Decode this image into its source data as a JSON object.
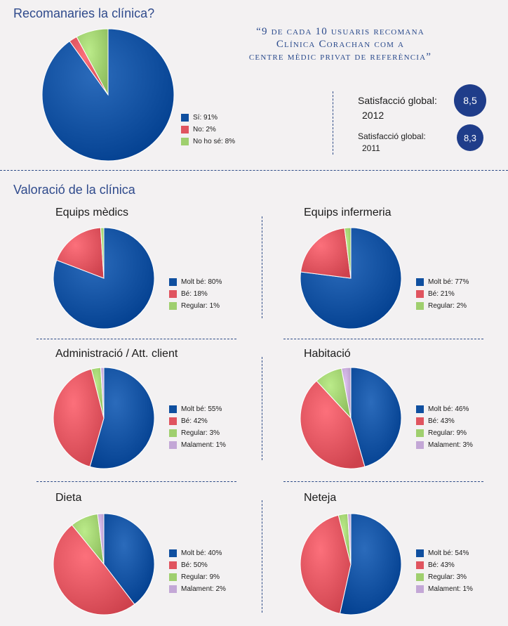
{
  "colors": {
    "molt_be": "#0f4f9f",
    "be": "#e0545f",
    "regular": "#9fcf6e",
    "malament": "#c3a7d6",
    "si": "#0f4f9f",
    "no": "#e0545f",
    "no_ho_se": "#9fcf6e"
  },
  "recommend": {
    "title": "Recomanaries la clínica?",
    "quote_lines": [
      "“9 de cada 10 usuaris recomana",
      "Clínica Corachan com a",
      "centre mèdic privat de referència”"
    ]
  },
  "satisfaction": {
    "y2012": {
      "label": "Satisfacció global:",
      "year": "2012",
      "value": "8,5"
    },
    "y2011": {
      "label": "Satisfacció global:",
      "year": "2011",
      "value": "8,3"
    }
  },
  "valoracio_title": "Valoració de la clínica",
  "chart_data": [
    {
      "id": "recomanaries",
      "type": "pie",
      "title": "Recomanaries la clínica?",
      "slices": [
        {
          "key": "si",
          "label": "Sí: 91%",
          "value": 91
        },
        {
          "key": "no",
          "label": "No: 2%",
          "value": 2
        },
        {
          "key": "no_ho_se",
          "label": "No ho sé: 8%",
          "value": 8
        }
      ]
    },
    {
      "id": "equips-medics",
      "type": "pie",
      "title": "Equips mèdics",
      "slices": [
        {
          "key": "molt_be",
          "label": "Molt bé: 80%",
          "value": 80
        },
        {
          "key": "be",
          "label": "Bé: 18%",
          "value": 18
        },
        {
          "key": "regular",
          "label": "Regular: 1%",
          "value": 1
        }
      ]
    },
    {
      "id": "equips-infermeria",
      "type": "pie",
      "title": "Equips infermeria",
      "slices": [
        {
          "key": "molt_be",
          "label": "Molt bé: 77%",
          "value": 77
        },
        {
          "key": "be",
          "label": "Bé: 21%",
          "value": 21
        },
        {
          "key": "regular",
          "label": "Regular: 2%",
          "value": 2
        }
      ]
    },
    {
      "id": "administracio",
      "type": "pie",
      "title": "Administració / Att. client",
      "slices": [
        {
          "key": "molt_be",
          "label": "Molt bé: 55%",
          "value": 55
        },
        {
          "key": "be",
          "label": "Bé: 42%",
          "value": 42
        },
        {
          "key": "regular",
          "label": "Regular: 3%",
          "value": 3
        },
        {
          "key": "malament",
          "label": "Malament: 1%",
          "value": 1
        }
      ]
    },
    {
      "id": "habitacio",
      "type": "pie",
      "title": "Habitació",
      "slices": [
        {
          "key": "molt_be",
          "label": "Molt bé: 46%",
          "value": 46
        },
        {
          "key": "be",
          "label": "Bé: 43%",
          "value": 43
        },
        {
          "key": "regular",
          "label": "Regular: 9%",
          "value": 9
        },
        {
          "key": "malament",
          "label": "Malament: 3%",
          "value": 3
        }
      ]
    },
    {
      "id": "dieta",
      "type": "pie",
      "title": "Dieta",
      "slices": [
        {
          "key": "molt_be",
          "label": "Molt bé: 40%",
          "value": 40
        },
        {
          "key": "be",
          "label": "Bé: 50%",
          "value": 50
        },
        {
          "key": "regular",
          "label": "Regular: 9%",
          "value": 9
        },
        {
          "key": "malament",
          "label": "Malament: 2%",
          "value": 2
        }
      ]
    },
    {
      "id": "neteja",
      "type": "pie",
      "title": "Neteja",
      "slices": [
        {
          "key": "molt_be",
          "label": "Molt bé: 54%",
          "value": 54
        },
        {
          "key": "be",
          "label": "Bé: 43%",
          "value": 43
        },
        {
          "key": "regular",
          "label": "Regular: 3%",
          "value": 3
        },
        {
          "key": "malament",
          "label": "Malament: 1%",
          "value": 1
        }
      ]
    }
  ]
}
